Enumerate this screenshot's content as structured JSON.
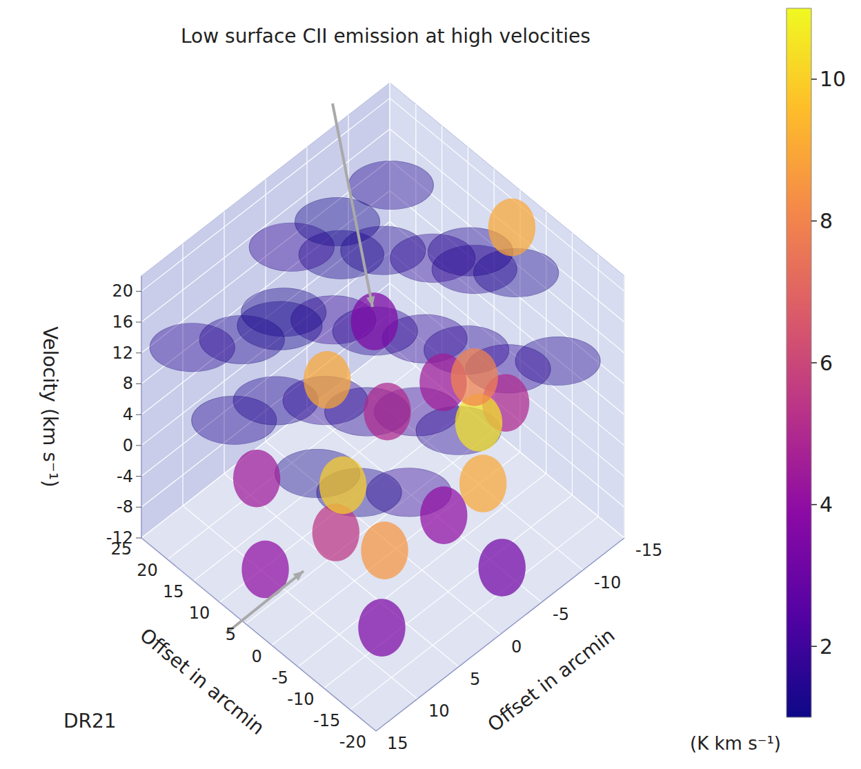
{
  "chart_data": {
    "type": "volume3d",
    "title": "DR21",
    "annotations": [
      "Low surface CII emission at high velocities"
    ],
    "x_label": "Offset in arcmin",
    "y_label": "Offset in arcmin",
    "z_label": "Velocity (km s⁻¹)",
    "xlim": [
      -20,
      25
    ],
    "xticks": [
      -20,
      -15,
      -10,
      -5,
      0,
      5,
      10,
      15,
      20,
      25
    ],
    "ylim": [
      -15,
      15
    ],
    "yticks": [
      -15,
      -10,
      -5,
      0,
      5,
      10,
      15
    ],
    "zlim": [
      -12,
      22
    ],
    "zticks": [
      -12,
      -8,
      -4,
      0,
      4,
      8,
      12,
      16,
      20
    ],
    "grid": true,
    "colorbar": {
      "label": "(K km s⁻¹)",
      "range": [
        1,
        11
      ],
      "ticks": [
        2,
        4,
        6,
        8,
        10
      ]
    },
    "x": [
      20,
      20,
      20,
      20,
      20,
      12,
      12,
      12,
      12,
      12,
      4,
      4,
      4,
      4,
      4,
      -4,
      -4,
      -4,
      -4,
      -4,
      -12,
      -12,
      -12,
      -12,
      -12,
      16,
      0,
      8,
      20,
      14,
      8,
      2,
      -6,
      -10,
      10,
      -2,
      6,
      -14,
      0,
      -4,
      7,
      -1,
      10,
      0,
      4
    ],
    "y": [
      -12,
      -6,
      0,
      6,
      12,
      -12,
      -6,
      0,
      6,
      12,
      -12,
      -6,
      0,
      6,
      12,
      -12,
      -6,
      0,
      6,
      12,
      -12,
      -6,
      0,
      6,
      12,
      -3,
      -9,
      9,
      -10,
      8,
      -4,
      6,
      -2,
      8,
      -12,
      -12,
      12,
      -4,
      -10,
      -8,
      2,
      2,
      2,
      -14,
      -12
    ],
    "velocity": [
      14,
      10,
      16,
      9,
      13,
      9,
      15,
      11,
      17,
      8,
      12,
      8,
      14,
      10,
      15,
      16,
      11,
      8,
      13,
      10,
      9,
      13,
      10,
      7,
      12,
      19,
      19,
      20,
      -2,
      -4,
      -2,
      -6,
      -6,
      -10,
      -6,
      -2,
      -8,
      -10,
      -4,
      -8,
      -6,
      -10,
      6,
      18,
      -2
    ],
    "intensity": [
      1.5,
      1.3,
      1.8,
      1.4,
      1.6,
      1.7,
      1.4,
      1.9,
      1.3,
      1.5,
      1.6,
      1.8,
      1.5,
      1.7,
      1.4,
      1.3,
      1.6,
      1.9,
      1.5,
      1.2,
      1.4,
      1.7,
      1.5,
      1.8,
      1.3,
      1.2,
      1.4,
      1.2,
      3.5,
      4.5,
      5,
      5.5,
      4,
      3.5,
      4.5,
      5,
      4,
      3.2,
      10.5,
      9,
      10,
      8.5,
      9,
      9,
      8
    ]
  }
}
